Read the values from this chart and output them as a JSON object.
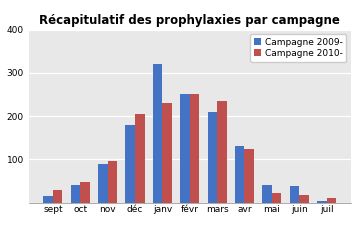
{
  "title": "Récapitulatif des prophylaxies par campagne",
  "months": [
    "sept",
    "oct",
    "nov",
    "déc",
    "janv",
    "févr",
    "mars",
    "avr",
    "mai",
    "juin",
    "juil"
  ],
  "campagne_2009": [
    15,
    40,
    90,
    180,
    320,
    250,
    210,
    130,
    40,
    38,
    3
  ],
  "campagne_2010": [
    28,
    48,
    95,
    205,
    230,
    250,
    235,
    125,
    22,
    18,
    10
  ],
  "color_2009": "#4472C4",
  "color_2010": "#C0504D",
  "legend_2009": "Campagne 2009-",
  "legend_2010": "Campagne 2010-",
  "ylim": [
    0,
    400
  ],
  "ytick_labels": [
    "",
    "100",
    "200",
    "300",
    "400"
  ],
  "yticks": [
    0,
    100,
    200,
    300,
    400
  ],
  "background_color": "#E8E8E8",
  "bar_width": 0.35,
  "title_fontsize": 8.5,
  "tick_fontsize": 6.5,
  "legend_fontsize": 6.5
}
